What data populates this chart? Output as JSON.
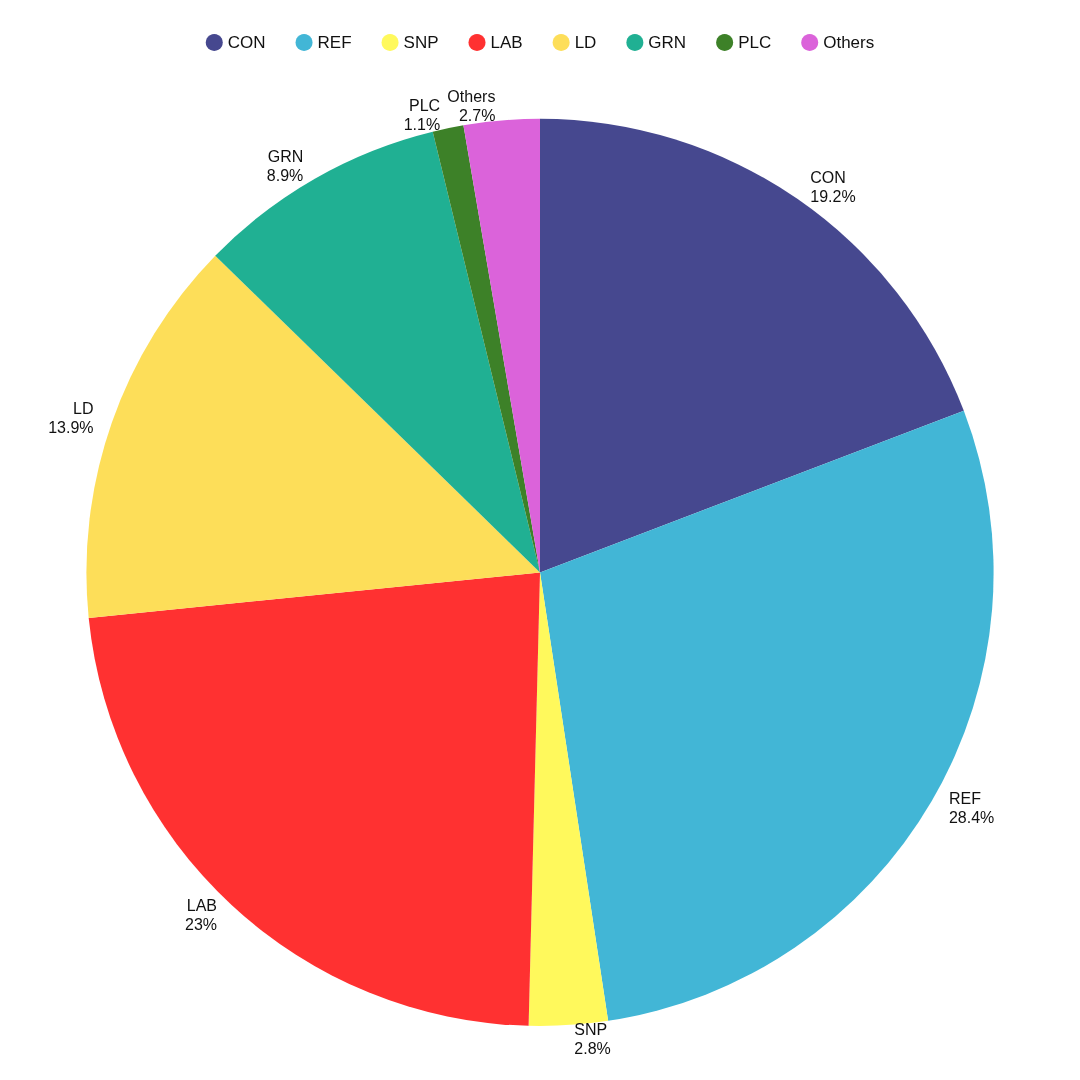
{
  "chart_data": {
    "type": "pie",
    "categories": [
      "CON",
      "REF",
      "SNP",
      "LAB",
      "LD",
      "GRN",
      "PLC",
      "Others"
    ],
    "values": [
      19.2,
      28.4,
      2.8,
      23,
      13.9,
      8.9,
      1.1,
      2.7
    ],
    "colors": [
      "#46488f",
      "#42b6d6",
      "#fff95c",
      "#ff3131",
      "#fdde59",
      "#20b093",
      "#3d8128",
      "#db63da"
    ],
    "legend": "top",
    "value_labels": [
      "19.2%",
      "28.4%",
      "2.8%",
      "23%",
      "13.9%",
      "8.9%",
      "1.1%",
      "2.7%"
    ]
  }
}
